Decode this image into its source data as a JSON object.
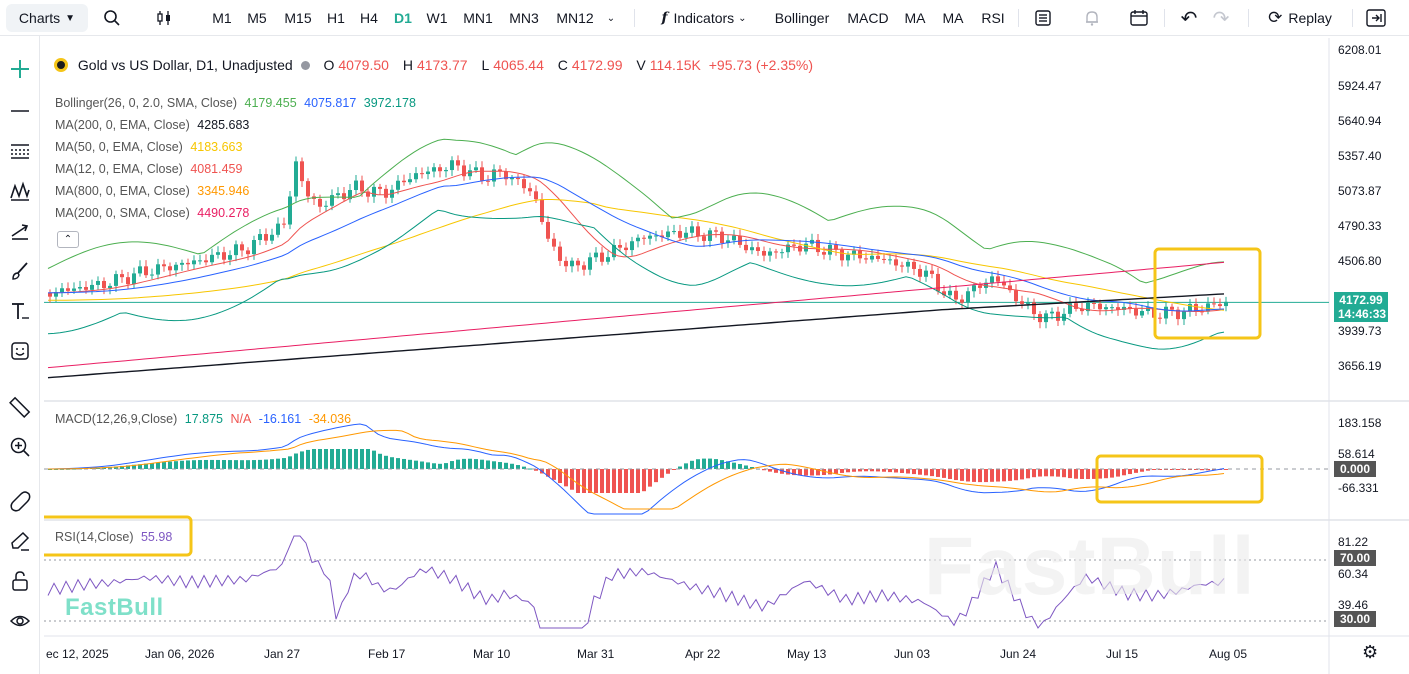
{
  "toolbar": {
    "charts_label": "Charts",
    "timeframes": [
      "M1",
      "M5",
      "M15",
      "H1",
      "H4",
      "D1",
      "W1",
      "MN1",
      "MN3",
      "MN12"
    ],
    "active_timeframe": "D1",
    "indicators_label": "Indicators",
    "quick_indicators": [
      "Bollinger",
      "MACD",
      "MA",
      "MA",
      "RSI"
    ],
    "replay_label": "Replay"
  },
  "symbol": {
    "title": "Gold vs US Dollar, D1, Unadjusted",
    "o_label": "O",
    "o": "4079.50",
    "h_label": "H",
    "h": "4173.77",
    "l_label": "L",
    "l": "4065.44",
    "c_label": "C",
    "c": "4172.99",
    "v_label": "V",
    "v": "114.15K",
    "change": "+95.73 (+2.35%)"
  },
  "indicators": [
    {
      "name": "Bollinger(26, 0, 2.0, SMA, Close)",
      "values": [
        "4179.455",
        "4075.817",
        "3972.178"
      ],
      "colors": [
        "#4caf50",
        "#2962ff",
        "#089981"
      ]
    },
    {
      "name": "MA(200, 0, EMA, Close)",
      "values": [
        "4285.683"
      ],
      "colors": [
        "#131722"
      ]
    },
    {
      "name": "MA(50, 0, EMA, Close)",
      "values": [
        "4183.663"
      ],
      "colors": [
        "#f7c600"
      ]
    },
    {
      "name": "MA(12, 0, EMA, Close)",
      "values": [
        "4081.459"
      ],
      "colors": [
        "#ef5350"
      ]
    },
    {
      "name": "MA(800, 0, EMA, Close)",
      "values": [
        "3345.946"
      ],
      "colors": [
        "#ff9800"
      ]
    },
    {
      "name": "MA(200, 0, SMA, Close)",
      "values": [
        "4490.278"
      ],
      "colors": [
        "#e91e63"
      ]
    }
  ],
  "macd": {
    "name": "MACD(12,26,9,Close)",
    "v1": "17.875",
    "v2": "N/A",
    "v3": "-16.161",
    "v4": "-34.036"
  },
  "rsi": {
    "name": "RSI(14,Close)",
    "value": "55.98"
  },
  "price_axis": [
    "6208.01",
    "5924.47",
    "5640.94",
    "5357.40",
    "5073.87",
    "4790.33",
    "4506.80",
    "3939.73",
    "3656.19"
  ],
  "price_tag": {
    "price": "4172.99",
    "countdown": "14:46:33"
  },
  "macd_axis": [
    "183.158",
    "58.614",
    "-66.331"
  ],
  "macd_tag": "0.000",
  "rsi_axis": [
    "81.22",
    "60.34",
    "39.46"
  ],
  "rsi_tags": [
    "70.00",
    "30.00"
  ],
  "date_axis": [
    "ec 12, 2025",
    "Jan 06, 2026",
    "Jan 27",
    "Feb 17",
    "Mar 10",
    "Mar 31",
    "Apr 22",
    "May 13",
    "Jun 03",
    "Jun 24",
    "Jul 15",
    "Aug 05"
  ],
  "watermark_small": "FastBull",
  "watermark_large": "FastBull",
  "colors": {
    "up": "#22ab94",
    "down": "#ef5350",
    "accent": "#22ab94",
    "highlight": "#f5c518"
  }
}
